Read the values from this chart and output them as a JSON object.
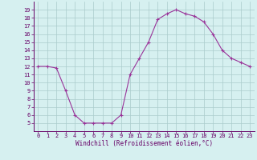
{
  "hours": [
    0,
    1,
    2,
    3,
    4,
    5,
    6,
    7,
    8,
    9,
    10,
    11,
    12,
    13,
    14,
    15,
    16,
    17,
    18,
    19,
    20,
    21,
    22,
    23
  ],
  "values": [
    12,
    12,
    11.8,
    9,
    6,
    5,
    5,
    5,
    5,
    6,
    11,
    13,
    15,
    17.8,
    18.5,
    19,
    18.5,
    18.2,
    17.5,
    16,
    14,
    13,
    12.5,
    12
  ],
  "line_color": "#993399",
  "marker": "+",
  "marker_size": 3,
  "marker_linewidth": 0.8,
  "bg_color": "#d6f0f0",
  "grid_color": "#aacccc",
  "xlabel": "Windchill (Refroidissement éolien,°C)",
  "xlabel_color": "#660066",
  "tick_color": "#660066",
  "spine_color": "#660066",
  "ylim": [
    4,
    20
  ],
  "xlim": [
    -0.5,
    23.5
  ],
  "yticks": [
    5,
    6,
    7,
    8,
    9,
    10,
    11,
    12,
    13,
    14,
    15,
    16,
    17,
    18,
    19
  ],
  "xticks": [
    0,
    1,
    2,
    3,
    4,
    5,
    6,
    7,
    8,
    9,
    10,
    11,
    12,
    13,
    14,
    15,
    16,
    17,
    18,
    19,
    20,
    21,
    22,
    23
  ],
  "tick_fontsize": 5,
  "xlabel_fontsize": 5.5,
  "linewidth": 0.8
}
